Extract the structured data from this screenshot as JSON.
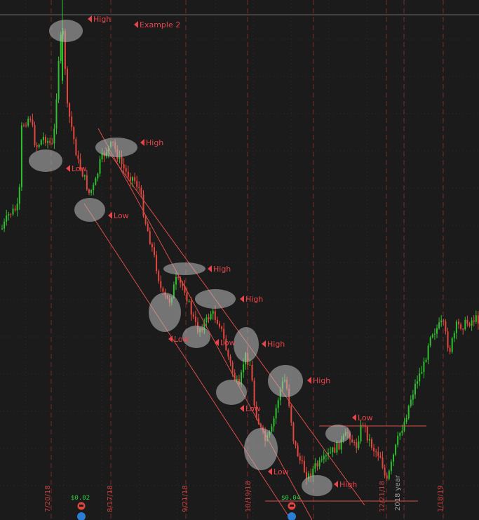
{
  "chart_data": {
    "type": "candlestick",
    "date_labels": [
      "7/20/18",
      "8/17/18",
      "9/21/18",
      "10/19/18",
      "12/21/18",
      "1/18/19"
    ],
    "year_label": "2018 year",
    "example_label": "Example 2",
    "dividends": [
      "$0.02",
      "$0.04"
    ],
    "annotations": [
      {
        "label": "High"
      },
      {
        "label": "Low"
      },
      {
        "label": "High"
      },
      {
        "label": "Low"
      },
      {
        "label": "High"
      },
      {
        "label": "High"
      },
      {
        "label": "Low"
      },
      {
        "label": "Low"
      },
      {
        "label": "High"
      },
      {
        "label": "High"
      },
      {
        "label": "Low"
      },
      {
        "label": "Low"
      },
      {
        "label": "High"
      },
      {
        "label": "Low"
      }
    ],
    "colors": {
      "background": "#1b1b1b",
      "up": "#2fbf2f",
      "down": "#e2473f",
      "annotation": "#e8444a",
      "trendline": "#d94e48",
      "highlight": "#bdbdbd"
    }
  }
}
